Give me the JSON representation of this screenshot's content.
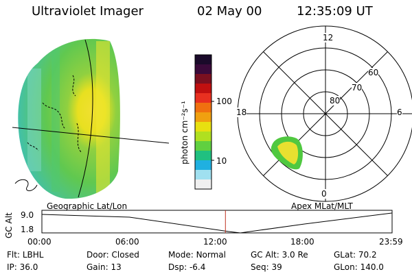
{
  "header": {
    "instrument": "Ultraviolet Imager",
    "date": "02 May 00",
    "time": "12:35:09 UT"
  },
  "colorbar": {
    "label": "photon cm⁻²s⁻¹",
    "ticks": [
      "100",
      "10"
    ],
    "colors": [
      "#1a0a2a",
      "#3a0a3a",
      "#7a1020",
      "#c01010",
      "#e83020",
      "#f07010",
      "#f0a010",
      "#e8e010",
      "#b0e020",
      "#60d040",
      "#20c080",
      "#20b0e0",
      "#a0e0f0",
      "#f0f0f0"
    ]
  },
  "polar": {
    "lat_labels": [
      "80",
      "70",
      "60"
    ],
    "mlt_labels": {
      "top": "12",
      "right": "6",
      "bottom": "0",
      "left": "18"
    }
  },
  "panels": {
    "left_caption": "Geographic Lat/Lon",
    "right_caption": "Apex MLat/MLT"
  },
  "altplot": {
    "axis_label": "GC Alt",
    "y_ticks": [
      "9.0",
      "1.8"
    ],
    "x_ticks": [
      "00:00",
      "06:00",
      "12:00",
      "18:00",
      "23:59"
    ],
    "current_time_marker_hours": 12.58
  },
  "footer": {
    "row1": [
      {
        "label": "Flt:",
        "value": "LBHL"
      },
      {
        "label": "Door:",
        "value": "Closed"
      },
      {
        "label": "Mode:",
        "value": "Normal"
      },
      {
        "label": "GC Alt:",
        "value": "3.0 Re"
      },
      {
        "label": "GLat:",
        "value": "70.2"
      }
    ],
    "row2": [
      {
        "label": "IP:",
        "value": "36.0"
      },
      {
        "label": "Gain:",
        "value": "13"
      },
      {
        "label": "Dsp:",
        "value": "-6.4"
      },
      {
        "label": "Seq:",
        "value": "39"
      },
      {
        "label": "GLon:",
        "value": "140.0"
      }
    ]
  },
  "accent": {
    "marker_color": "#c03020"
  }
}
